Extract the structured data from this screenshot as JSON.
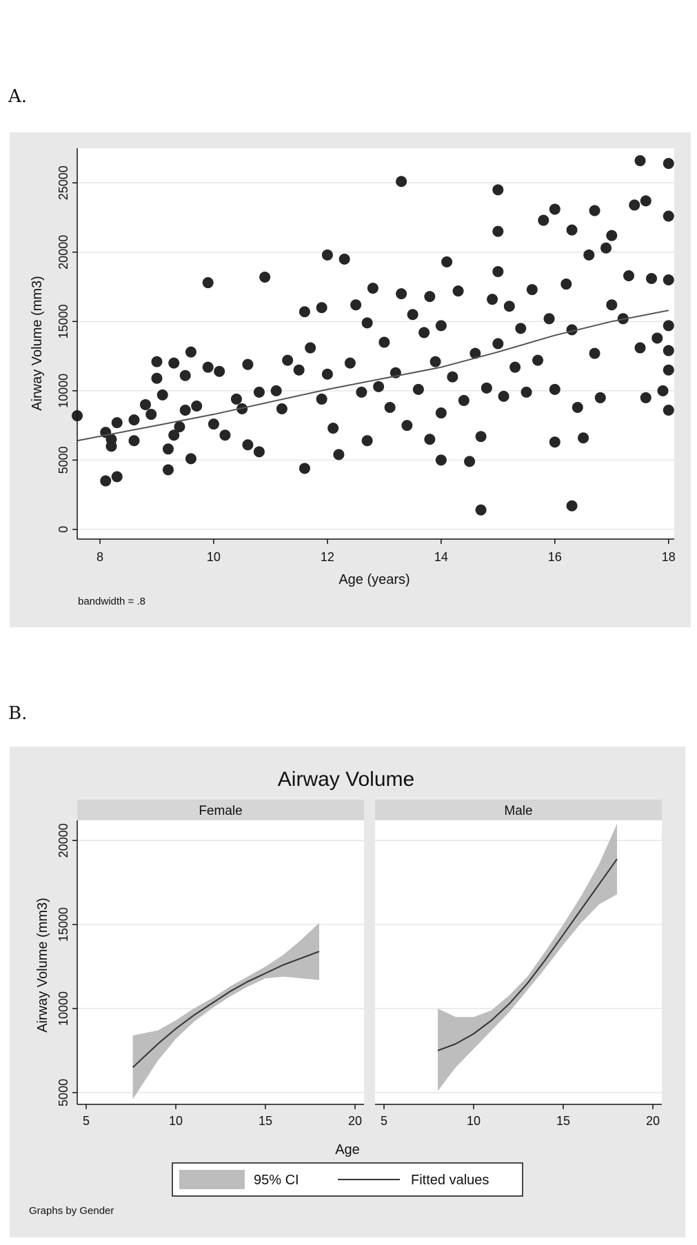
{
  "panels": {
    "a_label": "A.",
    "b_label": "B."
  },
  "chart_data": [
    {
      "type": "scatter",
      "xlabel": "Age (years)",
      "ylabel": "Airway Volume (mm3)",
      "xlim": [
        7.6,
        18.1
      ],
      "ylim": [
        -700,
        27500
      ],
      "xticks": [
        "8",
        "10",
        "12",
        "14",
        "16",
        "18"
      ],
      "yticks": [
        "0",
        "5000",
        "10000",
        "15000",
        "20000",
        "25000"
      ],
      "note": "bandwidth = .8",
      "grid": true,
      "fit_line": {
        "x": [
          7.6,
          9,
          10,
          11,
          12,
          13,
          14,
          15,
          16,
          17,
          18
        ],
        "y": [
          6400,
          7500,
          8300,
          9200,
          10100,
          10900,
          11700,
          12800,
          14000,
          15000,
          15800
        ]
      },
      "points": [
        [
          7.6,
          8200
        ],
        [
          8.1,
          3500
        ],
        [
          8.3,
          3800
        ],
        [
          8.1,
          7000
        ],
        [
          8.2,
          6500
        ],
        [
          8.3,
          7700
        ],
        [
          8.2,
          6000
        ],
        [
          8.6,
          6400
        ],
        [
          8.6,
          7900
        ],
        [
          8.8,
          9000
        ],
        [
          8.9,
          8300
        ],
        [
          9.0,
          12100
        ],
        [
          9.0,
          10900
        ],
        [
          9.1,
          9700
        ],
        [
          9.3,
          12000
        ],
        [
          9.2,
          5800
        ],
        [
          9.2,
          4300
        ],
        [
          9.3,
          6800
        ],
        [
          9.4,
          7400
        ],
        [
          9.5,
          8600
        ],
        [
          9.6,
          12800
        ],
        [
          9.5,
          11100
        ],
        [
          9.7,
          8900
        ],
        [
          9.9,
          17800
        ],
        [
          9.9,
          11700
        ],
        [
          9.6,
          5100
        ],
        [
          10.0,
          7600
        ],
        [
          10.1,
          11400
        ],
        [
          10.2,
          6800
        ],
        [
          10.4,
          9400
        ],
        [
          10.5,
          8700
        ],
        [
          10.6,
          11900
        ],
        [
          10.6,
          6100
        ],
        [
          10.8,
          5600
        ],
        [
          10.8,
          9900
        ],
        [
          10.9,
          18200
        ],
        [
          11.1,
          10000
        ],
        [
          11.2,
          8700
        ],
        [
          11.3,
          12200
        ],
        [
          11.5,
          11500
        ],
        [
          11.6,
          4400
        ],
        [
          11.6,
          15700
        ],
        [
          11.7,
          13100
        ],
        [
          11.9,
          16000
        ],
        [
          11.9,
          9400
        ],
        [
          12.0,
          19800
        ],
        [
          12.0,
          11200
        ],
        [
          12.1,
          7300
        ],
        [
          12.2,
          5400
        ],
        [
          12.3,
          19500
        ],
        [
          12.4,
          12000
        ],
        [
          12.5,
          16200
        ],
        [
          12.6,
          9900
        ],
        [
          12.7,
          14900
        ],
        [
          12.7,
          6400
        ],
        [
          12.8,
          17400
        ],
        [
          12.9,
          10300
        ],
        [
          13.0,
          13500
        ],
        [
          13.1,
          8800
        ],
        [
          13.2,
          11300
        ],
        [
          13.3,
          25100
        ],
        [
          13.3,
          17000
        ],
        [
          13.4,
          7500
        ],
        [
          13.5,
          15500
        ],
        [
          13.6,
          10100
        ],
        [
          13.7,
          14200
        ],
        [
          13.8,
          16800
        ],
        [
          13.8,
          6500
        ],
        [
          13.9,
          12100
        ],
        [
          14.0,
          14700
        ],
        [
          14.0,
          8400
        ],
        [
          14.0,
          5000
        ],
        [
          14.1,
          19300
        ],
        [
          14.2,
          11000
        ],
        [
          14.3,
          17200
        ],
        [
          14.4,
          9300
        ],
        [
          14.5,
          4900
        ],
        [
          14.6,
          12700
        ],
        [
          14.7,
          6700
        ],
        [
          14.7,
          1400
        ],
        [
          14.8,
          10200
        ],
        [
          14.9,
          16600
        ],
        [
          15.0,
          21500
        ],
        [
          15.0,
          24500
        ],
        [
          15.0,
          13400
        ],
        [
          15.0,
          18600
        ],
        [
          15.1,
          9600
        ],
        [
          15.2,
          16100
        ],
        [
          15.3,
          11700
        ],
        [
          15.4,
          14500
        ],
        [
          15.5,
          9900
        ],
        [
          15.6,
          17300
        ],
        [
          15.7,
          12200
        ],
        [
          15.8,
          22300
        ],
        [
          15.9,
          15200
        ],
        [
          16.0,
          23100
        ],
        [
          16.0,
          10100
        ],
        [
          16.0,
          6300
        ],
        [
          16.2,
          17700
        ],
        [
          16.3,
          21600
        ],
        [
          16.3,
          1700
        ],
        [
          16.3,
          14400
        ],
        [
          16.4,
          8800
        ],
        [
          16.5,
          6600
        ],
        [
          16.6,
          19800
        ],
        [
          16.7,
          23000
        ],
        [
          16.7,
          12700
        ],
        [
          16.8,
          9500
        ],
        [
          16.9,
          20300
        ],
        [
          17.0,
          21200
        ],
        [
          17.0,
          16200
        ],
        [
          17.2,
          15200
        ],
        [
          17.3,
          18300
        ],
        [
          17.4,
          23400
        ],
        [
          17.5,
          26600
        ],
        [
          17.5,
          13100
        ],
        [
          17.6,
          23700
        ],
        [
          17.6,
          9500
        ],
        [
          17.7,
          18100
        ],
        [
          17.8,
          13800
        ],
        [
          17.9,
          10000
        ],
        [
          18.0,
          26400
        ],
        [
          18.0,
          22600
        ],
        [
          18.0,
          18000
        ],
        [
          18.0,
          14700
        ],
        [
          18.0,
          12900
        ],
        [
          18.0,
          11500
        ],
        [
          18.0,
          8600
        ]
      ]
    },
    {
      "type": "line",
      "title": "Airway Volume",
      "xlabel": "Age",
      "ylabel": "Airway Volume (mm3)",
      "xlim": [
        4.5,
        20.5
      ],
      "ylim": [
        4300,
        21200
      ],
      "xticks": [
        "5",
        "10",
        "15",
        "20"
      ],
      "yticks": [
        "5000",
        "10000",
        "15000",
        "20000"
      ],
      "note": "Graphs by Gender",
      "legend": {
        "placement": "bottom",
        "ci_label": "95% CI",
        "fit_label": "Fitted values"
      },
      "facets": [
        {
          "name": "Female",
          "x": [
            7.6,
            9,
            10,
            11,
            12,
            13,
            14,
            15,
            16,
            17,
            18
          ],
          "fit": [
            6500,
            7900,
            8800,
            9600,
            10300,
            11000,
            11600,
            12100,
            12600,
            13000,
            13400
          ],
          "lower": [
            4600,
            6900,
            8200,
            9200,
            10000,
            10700,
            11300,
            11800,
            11900,
            11800,
            11700
          ],
          "upper": [
            8400,
            8700,
            9300,
            10000,
            10600,
            11300,
            11900,
            12500,
            13200,
            14100,
            15100
          ]
        },
        {
          "name": "Male",
          "x": [
            8,
            9,
            10,
            11,
            12,
            13,
            14,
            15,
            16,
            17,
            18
          ],
          "fit": [
            7500,
            7900,
            8500,
            9300,
            10300,
            11500,
            12900,
            14400,
            15900,
            17400,
            18900
          ],
          "lower": [
            5100,
            6500,
            7600,
            8700,
            9800,
            11100,
            12400,
            13800,
            15100,
            16200,
            16800
          ],
          "upper": [
            10000,
            9500,
            9500,
            9900,
            10800,
            11900,
            13400,
            15000,
            16700,
            18600,
            21000
          ]
        }
      ]
    }
  ]
}
